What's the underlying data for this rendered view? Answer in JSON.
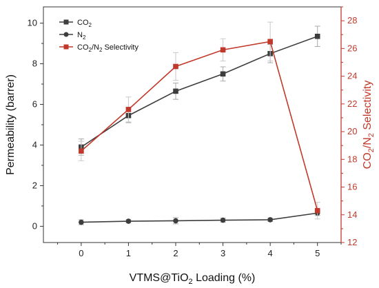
{
  "chart_data": {
    "type": "line",
    "title": "",
    "xlabel": "VTMS@TiO₂ Loading (%)",
    "ylabel_left": "Permeability (barrer)",
    "ylabel_right": "CO₂/N₂ Selectivity",
    "x": [
      0,
      1,
      2,
      3,
      4,
      5
    ],
    "xlim": [
      -0.8,
      5.5
    ],
    "ylim_left": [
      -0.8,
      10.8
    ],
    "ylim_right": [
      12,
      29
    ],
    "xticks": [
      "0",
      "1",
      "2",
      "3",
      "4",
      "5"
    ],
    "yticks_left": [
      "0",
      "2",
      "4",
      "6",
      "8",
      "10"
    ],
    "yticks_right": [
      "12",
      "14",
      "16",
      "18",
      "20",
      "22",
      "24",
      "26",
      "28"
    ],
    "legend_position": "top-left",
    "series": [
      {
        "name": "CO₂",
        "axis": "left",
        "marker": "square",
        "color": "#3d3d3d",
        "values": [
          3.9,
          5.45,
          6.65,
          7.5,
          8.5,
          9.35
        ],
        "errors": [
          0.4,
          0.35,
          0.4,
          0.35,
          0.45,
          0.5
        ]
      },
      {
        "name": "N₂",
        "axis": "left",
        "marker": "circle",
        "color": "#3d3d3d",
        "values": [
          0.2,
          0.25,
          0.27,
          0.3,
          0.32,
          0.65
        ],
        "errors": [
          0.12,
          0.08,
          0.15,
          0.1,
          0.08,
          0.12
        ]
      },
      {
        "name": "CO₂/N₂ Selectivity",
        "axis": "right",
        "marker": "square",
        "color": "#c0392b",
        "values": [
          18.6,
          21.6,
          24.7,
          25.9,
          26.5,
          14.3
        ],
        "errors": [
          0.7,
          0.9,
          1.0,
          0.8,
          1.4,
          0.6
        ]
      }
    ]
  },
  "legend_html": [
    "CO<tspan font-size=\"8\" dy=\"3\">2</tspan>",
    "N<tspan font-size=\"8\" dy=\"3\">2</tspan>",
    "CO<tspan font-size=\"8\" dy=\"3\">2</tspan><tspan dy=\"-3\">/N</tspan><tspan font-size=\"8\" dy=\"3\">2</tspan><tspan dy=\"-3\"> Selectivity</tspan>"
  ]
}
